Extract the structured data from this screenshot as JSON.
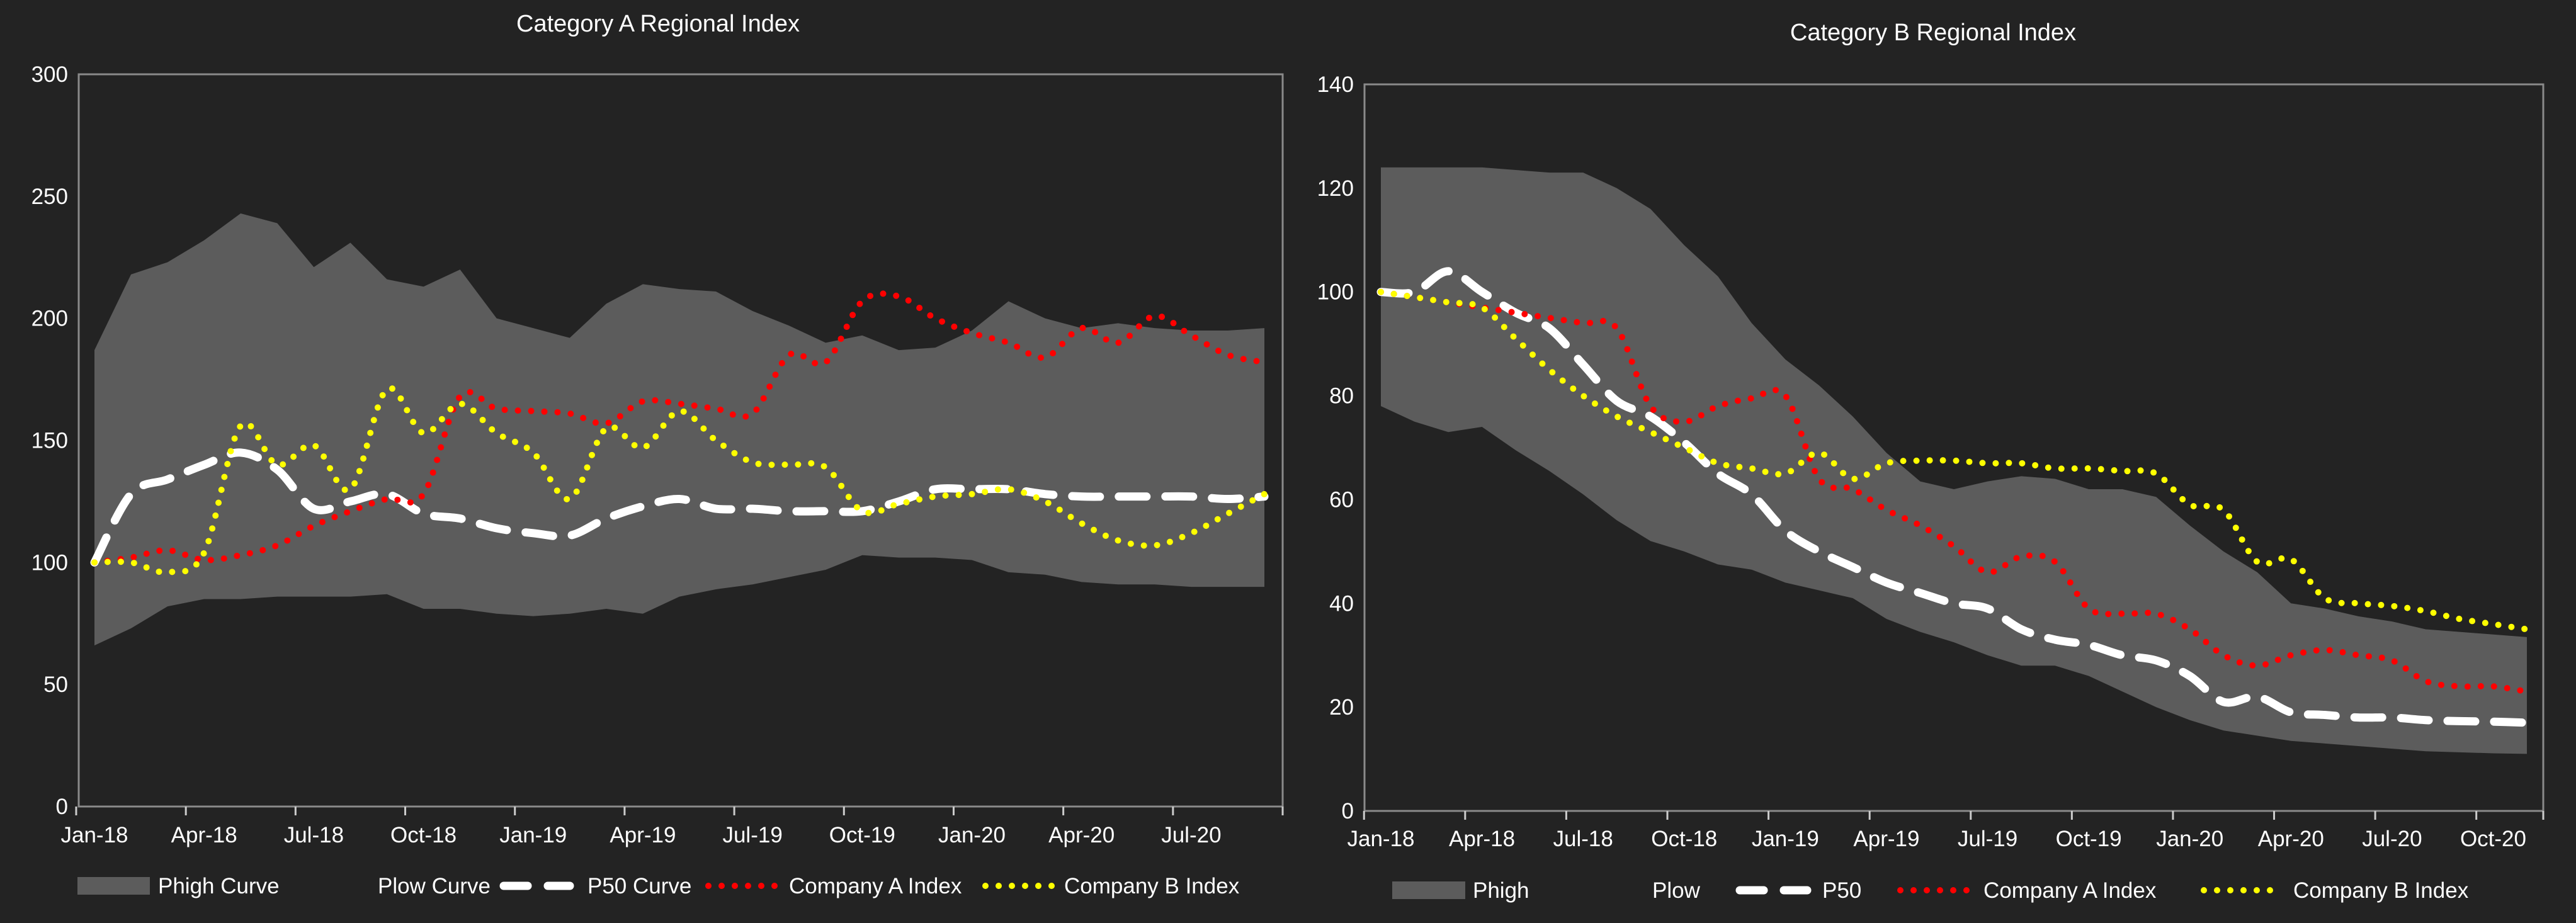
{
  "colors": {
    "background": "#232323",
    "band": "#5c5c5c",
    "p50": "#ffffff",
    "company_a": "#ff0000",
    "company_b": "#ffff00",
    "axis": "#8a8a8a"
  },
  "chart_data": [
    {
      "type": "area",
      "title": "Category A Regional Index",
      "xlabel": "",
      "ylabel": "",
      "ylim": [
        0,
        300
      ],
      "yticks": [
        "0",
        "50",
        "100",
        "150",
        "200",
        "250",
        "300"
      ],
      "xtick_labels": [
        "Jan-18",
        "Apr-18",
        "Jul-18",
        "Oct-18",
        "Jan-19",
        "Apr-19",
        "Jul-19",
        "Oct-19",
        "Jan-20",
        "Apr-20",
        "Jul-20"
      ],
      "x": [
        "Jan-18",
        "Feb-18",
        "Mar-18",
        "Apr-18",
        "May-18",
        "Jun-18",
        "Jul-18",
        "Aug-18",
        "Sep-18",
        "Oct-18",
        "Nov-18",
        "Dec-18",
        "Jan-19",
        "Feb-19",
        "Mar-19",
        "Apr-19",
        "May-19",
        "Jun-19",
        "Jul-19",
        "Aug-19",
        "Sep-19",
        "Oct-19",
        "Nov-19",
        "Dec-19",
        "Jan-20",
        "Feb-20",
        "Mar-20",
        "Apr-20",
        "May-20",
        "Jun-20",
        "Jul-20",
        "Aug-20",
        "Sep-20"
      ],
      "grid": false,
      "legend_position": "bottom",
      "legend": [
        "Phigh Curve",
        "Plow Curve",
        "P50 Curve",
        "Company A Index",
        "Company B Index"
      ],
      "series": [
        {
          "name": "Phigh Curve",
          "values": [
            187,
            218,
            223,
            232,
            243,
            239,
            221,
            231,
            216,
            213,
            220,
            200,
            196,
            192,
            206,
            214,
            212,
            211,
            203,
            197,
            190,
            193,
            187,
            188,
            195,
            207,
            200,
            196,
            198,
            196,
            195,
            195,
            196
          ]
        },
        {
          "name": "Plow Curve",
          "values": [
            66,
            73,
            82,
            85,
            85,
            86,
            86,
            86,
            87,
            81,
            81,
            79,
            78,
            79,
            81,
            79,
            86,
            89,
            91,
            94,
            97,
            103,
            102,
            102,
            101,
            96,
            95,
            92,
            91,
            91,
            90,
            90,
            90
          ]
        },
        {
          "name": "P50 Curve",
          "values": [
            100,
            128,
            134,
            140,
            145,
            138,
            122,
            125,
            128,
            120,
            118,
            114,
            112,
            111,
            118,
            123,
            126,
            122,
            122,
            121,
            121,
            121,
            125,
            130,
            130,
            130,
            128,
            127,
            127,
            127,
            127,
            126,
            127
          ]
        },
        {
          "name": "Company A Index",
          "values": [
            100,
            102,
            105,
            101,
            103,
            107,
            115,
            121,
            126,
            128,
            168,
            163,
            162,
            161,
            157,
            166,
            165,
            163,
            161,
            185,
            182,
            207,
            209,
            200,
            194,
            190,
            184,
            196,
            190,
            201,
            193,
            185,
            182
          ]
        },
        {
          "name": "Company B Index",
          "values": [
            100,
            100,
            96,
            104,
            156,
            140,
            148,
            130,
            171,
            153,
            165,
            153,
            145,
            126,
            155,
            147,
            162,
            150,
            141,
            140,
            139,
            121,
            124,
            127,
            128,
            130,
            125,
            116,
            109,
            107,
            112,
            120,
            128
          ]
        }
      ]
    },
    {
      "type": "area",
      "title": "Category B Regional Index",
      "xlabel": "",
      "ylabel": "",
      "ylim": [
        0,
        140
      ],
      "yticks": [
        "0",
        "20",
        "40",
        "60",
        "80",
        "100",
        "120",
        "140"
      ],
      "xtick_labels": [
        "Jan-18",
        "Apr-18",
        "Jul-18",
        "Oct-18",
        "Jan-19",
        "Apr-19",
        "Jul-19",
        "Oct-19",
        "Jan-20",
        "Apr-20",
        "Jul-20",
        "Oct-20"
      ],
      "x": [
        "Jan-18",
        "Feb-18",
        "Mar-18",
        "Apr-18",
        "May-18",
        "Jun-18",
        "Jul-18",
        "Aug-18",
        "Sep-18",
        "Oct-18",
        "Nov-18",
        "Dec-18",
        "Jan-19",
        "Feb-19",
        "Mar-19",
        "Apr-19",
        "May-19",
        "Jun-19",
        "Jul-19",
        "Aug-19",
        "Sep-19",
        "Oct-19",
        "Nov-19",
        "Dec-19",
        "Jan-20",
        "Feb-20",
        "Mar-20",
        "Apr-20",
        "May-20",
        "Jun-20",
        "Jul-20",
        "Aug-20",
        "Sep-20",
        "Oct-20",
        "Nov-20"
      ],
      "grid": false,
      "legend_position": "bottom",
      "legend": [
        "Phigh",
        "Plow",
        "P50",
        "Company A Index",
        "Company B Index"
      ],
      "series": [
        {
          "name": "Phigh",
          "values": [
            124,
            124,
            124,
            124,
            123.5,
            123,
            123,
            120,
            116,
            109,
            103,
            94,
            87,
            82,
            76,
            69,
            63.5,
            62,
            63.5,
            64.5,
            64,
            62,
            62,
            60.5,
            55,
            50,
            46,
            40,
            39,
            37.5,
            36.5,
            35,
            34.5,
            34,
            33.5
          ]
        },
        {
          "name": "Plow",
          "values": [
            78,
            75,
            73,
            74,
            69.5,
            65.5,
            61,
            56,
            52,
            50,
            47.5,
            46.5,
            44,
            42.5,
            41,
            37,
            34.5,
            32.5,
            30,
            28,
            28,
            26,
            23,
            20,
            17.5,
            15.5,
            14.5,
            13.5,
            13,
            12.5,
            12,
            11.5,
            11.3,
            11.1,
            11
          ]
        },
        {
          "name": "P50",
          "values": [
            100,
            100,
            104,
            100,
            96,
            93,
            86,
            79,
            76,
            71,
            65,
            61,
            54,
            50,
            47,
            44,
            42,
            40,
            39,
            35,
            33,
            32,
            30,
            29,
            26,
            21,
            22,
            19,
            18.5,
            18,
            18,
            17.5,
            17.3,
            17.2,
            17
          ]
        },
        {
          "name": "Company A Index",
          "values": [
            100,
            99,
            98,
            97,
            96,
            95,
            94,
            93,
            78,
            75,
            78,
            79.5,
            80,
            64,
            62,
            58,
            55,
            51,
            46,
            49,
            48,
            39,
            38,
            38,
            35,
            30,
            28,
            30,
            31,
            30,
            29,
            25,
            24,
            24,
            23
          ]
        },
        {
          "name": "Company B Index",
          "values": [
            100,
            99,
            98,
            97,
            91,
            85,
            80,
            76,
            73,
            70,
            67,
            66,
            65,
            69,
            64,
            67,
            67.5,
            67.5,
            67,
            67,
            66,
            66,
            65.5,
            65,
            59,
            58,
            48,
            48.5,
            41,
            40,
            39.5,
            38.5,
            37,
            36,
            35
          ]
        }
      ]
    }
  ]
}
